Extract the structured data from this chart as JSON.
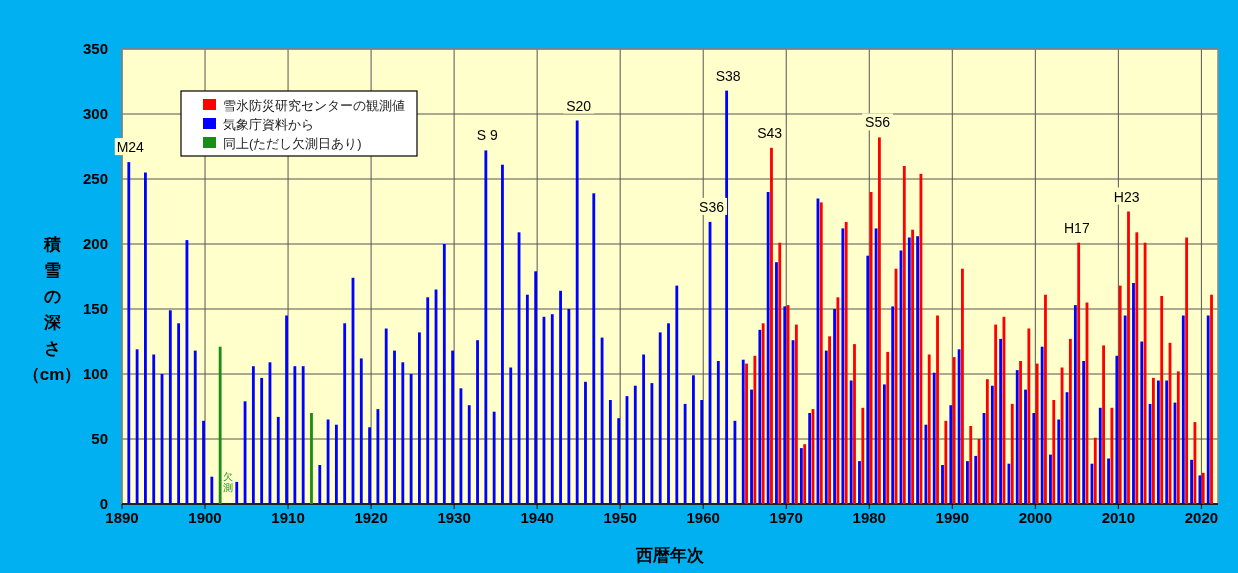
{
  "chart_data": {
    "type": "bar",
    "xlabel": "西暦年次",
    "ylabel": "積雪の深さ（cm）",
    "x": [
      1891,
      1892,
      1893,
      1894,
      1895,
      1896,
      1897,
      1898,
      1899,
      1900,
      1901,
      1902,
      1903,
      1904,
      1905,
      1906,
      1907,
      1908,
      1909,
      1910,
      1911,
      1912,
      1913,
      1914,
      1915,
      1916,
      1917,
      1918,
      1919,
      1920,
      1921,
      1922,
      1923,
      1924,
      1925,
      1926,
      1927,
      1928,
      1929,
      1930,
      1931,
      1932,
      1933,
      1934,
      1935,
      1936,
      1937,
      1938,
      1939,
      1940,
      1941,
      1942,
      1943,
      1944,
      1945,
      1946,
      1947,
      1948,
      1949,
      1950,
      1951,
      1952,
      1953,
      1954,
      1955,
      1956,
      1957,
      1958,
      1959,
      1960,
      1961,
      1962,
      1963,
      1964,
      1965,
      1966,
      1967,
      1968,
      1969,
      1970,
      1971,
      1972,
      1973,
      1974,
      1975,
      1976,
      1977,
      1978,
      1979,
      1980,
      1981,
      1982,
      1983,
      1984,
      1985,
      1986,
      1987,
      1988,
      1989,
      1990,
      1991,
      1992,
      1993,
      1994,
      1995,
      1996,
      1997,
      1998,
      1999,
      2000,
      2001,
      2002,
      2003,
      2004,
      2005,
      2006,
      2007,
      2008,
      2009,
      2010,
      2011,
      2012,
      2013,
      2014,
      2015,
      2016,
      2017,
      2018,
      2019,
      2020,
      2021
    ],
    "series": [
      {
        "name": "雪氷防災研究センターの観測値",
        "color": "#ff0000",
        "x": [
          1965,
          1966,
          1967,
          1968,
          1969,
          1970,
          1971,
          1972,
          1973,
          1974,
          1975,
          1976,
          1977,
          1978,
          1979,
          1980,
          1981,
          1982,
          1983,
          1984,
          1985,
          1986,
          1987,
          1988,
          1989,
          1990,
          1991,
          1992,
          1993,
          1994,
          1995,
          1996,
          1997,
          1998,
          1999,
          2000,
          2001,
          2002,
          2003,
          2004,
          2005,
          2006,
          2007,
          2008,
          2009,
          2010,
          2011,
          2012,
          2013,
          2014,
          2015,
          2016,
          2017,
          2018,
          2019,
          2020,
          2021
        ],
        "values": [
          108,
          114,
          139,
          274,
          201,
          153,
          138,
          46,
          73,
          232,
          129,
          159,
          217,
          123,
          74,
          240,
          282,
          117,
          181,
          260,
          211,
          254,
          115,
          145,
          64,
          113,
          181,
          60,
          50,
          96,
          138,
          144,
          77,
          110,
          135,
          108,
          161,
          80,
          105,
          127,
          201,
          155,
          51,
          122,
          74,
          168,
          225,
          209,
          201,
          97,
          160,
          124,
          102,
          205,
          63,
          24,
          161
        ]
      },
      {
        "name": "気象庁資料から",
        "color": "#0000ff",
        "values": [
          263,
          119,
          255,
          115,
          100,
          149,
          139,
          203,
          118,
          64,
          21,
          null,
          null,
          17,
          79,
          106,
          97,
          109,
          67,
          145,
          106,
          106,
          null,
          30,
          65,
          61,
          139,
          174,
          112,
          59,
          73,
          135,
          118,
          109,
          100,
          132,
          159,
          165,
          200,
          118,
          89,
          76,
          126,
          272,
          71,
          261,
          105,
          209,
          161,
          179,
          144,
          146,
          164,
          150,
          295,
          94,
          239,
          128,
          80,
          66,
          83,
          91,
          115,
          93,
          132,
          139,
          168,
          77,
          99,
          80,
          217,
          110,
          318,
          64,
          111,
          88,
          134,
          240,
          186,
          152,
          126,
          43,
          70,
          235,
          118,
          150,
          212,
          95,
          33,
          191,
          212,
          92,
          152,
          195,
          205,
          206,
          61,
          101,
          30,
          76,
          119,
          33,
          37,
          70,
          91,
          127,
          31,
          103,
          88,
          70,
          121,
          38,
          65,
          86,
          153,
          110,
          31,
          74,
          35,
          114,
          145,
          170,
          125,
          77,
          95,
          95,
          78,
          145,
          34,
          22,
          145
        ]
      },
      {
        "name": "同上(ただし欠測日あり)",
        "color": "#1a8c1a",
        "x": [
          1902,
          1913
        ],
        "values": [
          121,
          70
        ]
      }
    ],
    "annotations": [
      {
        "text": "M24",
        "x": 1891,
        "y": 263
      },
      {
        "text": "S 9",
        "x": 1934,
        "y": 272
      },
      {
        "text": "S20",
        "x": 1945,
        "y": 295
      },
      {
        "text": "S36",
        "x": 1961,
        "y": 217
      },
      {
        "text": "S38",
        "x": 1963,
        "y": 318
      },
      {
        "text": "S43",
        "x": 1968,
        "y": 274
      },
      {
        "text": "S56",
        "x": 1981,
        "y": 282
      },
      {
        "text": "H17",
        "x": 2005,
        "y": 201
      },
      {
        "text": "H23",
        "x": 2011,
        "y": 225
      },
      "欠測"
    ],
    "xlim": [
      1890,
      2022
    ],
    "xticks": [
      1890,
      1900,
      1910,
      1920,
      1930,
      1940,
      1950,
      1960,
      1970,
      1980,
      1990,
      2000,
      2010,
      2020
    ],
    "ylim": [
      0,
      350
    ],
    "yticks": [
      0,
      50,
      100,
      150,
      200,
      250,
      300,
      350
    ],
    "grid": true,
    "legend": "top left"
  }
}
